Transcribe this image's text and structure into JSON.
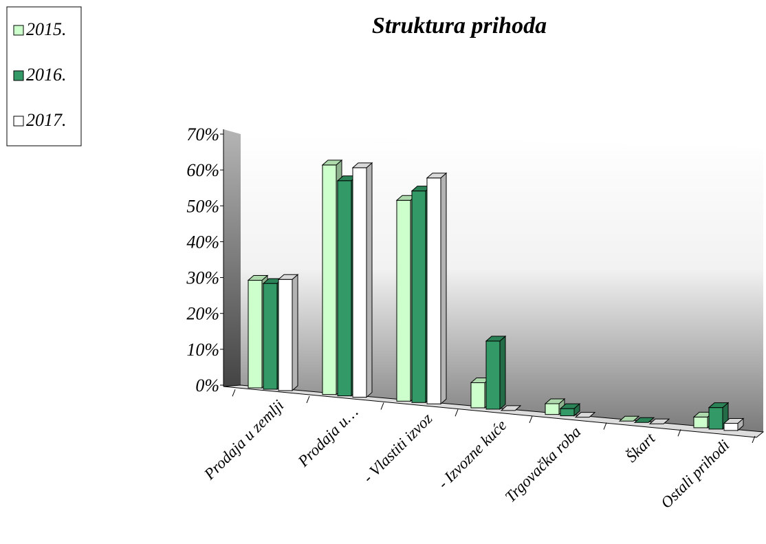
{
  "chart_data": {
    "type": "bar3d",
    "title": "Struktura prihoda",
    "categories": [
      "Prodaja u zemlji",
      "Prodaja u…",
      "- Vlastiti izvoz",
      "- Izvozne kuće",
      "Trgovačka roba",
      "Škart",
      "Ostali prihodi"
    ],
    "series": [
      {
        "name": "2015.",
        "color": "#ccffcc",
        "values": [
          30,
          64,
          56,
          7,
          3,
          0,
          3
        ]
      },
      {
        "name": "2016.",
        "color": "#339966",
        "values": [
          29.5,
          60,
          59,
          19,
          2,
          0,
          6
        ]
      },
      {
        "name": "2017.",
        "color": "#ffffff",
        "values": [
          31,
          64,
          63,
          0,
          0,
          0,
          2
        ]
      }
    ],
    "ylim": [
      0,
      70
    ],
    "yticks": [
      {
        "value": 0,
        "label": "0%"
      },
      {
        "value": 10,
        "label": "10%"
      },
      {
        "value": 20,
        "label": "20%"
      },
      {
        "value": 30,
        "label": "30%"
      },
      {
        "value": 40,
        "label": "40%"
      },
      {
        "value": 50,
        "label": "50%"
      },
      {
        "value": 60,
        "label": "60%"
      },
      {
        "value": 70,
        "label": "70%"
      }
    ],
    "legend": "top-left"
  }
}
